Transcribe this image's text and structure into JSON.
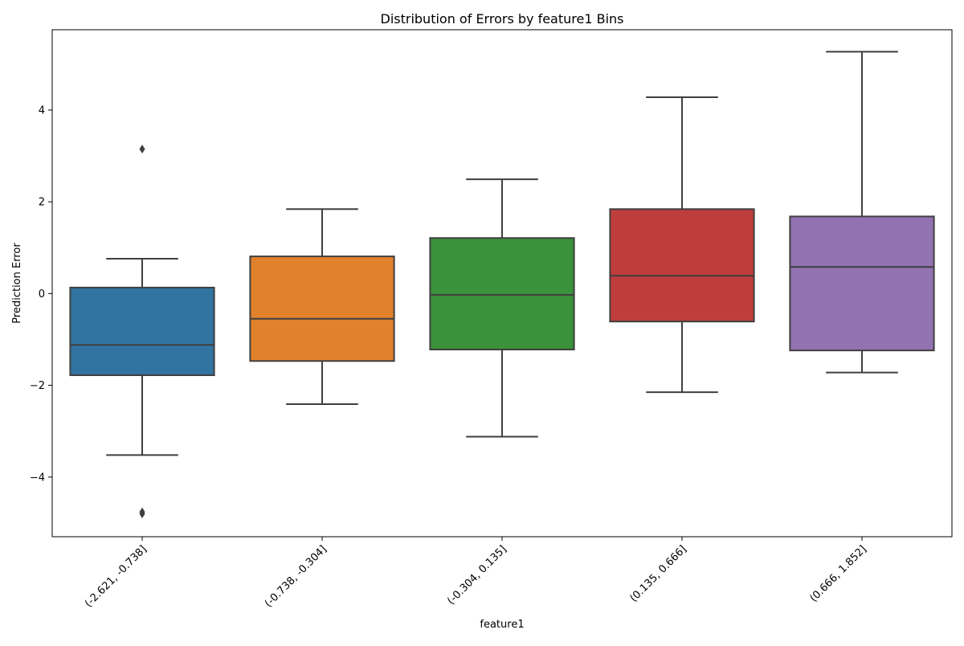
{
  "chart_data": {
    "type": "box",
    "title": "Distribution of Errors by feature1 Bins",
    "xlabel": "feature1",
    "ylabel": "Prediction Error",
    "ylim": [
      -5.3,
      5.75
    ],
    "yticks": [
      -4,
      -2,
      0,
      2,
      4
    ],
    "ytick_labels": [
      "−4",
      "−2",
      "0",
      "2",
      "4"
    ],
    "grid": false,
    "categories": [
      "(-2.621, -0.738]",
      "(-0.738, -0.304]",
      "(-0.304, 0.135]",
      "(0.135, 0.666]",
      "(0.666, 1.852]"
    ],
    "boxes": [
      {
        "category": "(-2.621, -0.738]",
        "color": "#3274a1",
        "whisker_low": -3.52,
        "q1": -1.78,
        "median": -1.12,
        "q3": 0.13,
        "whisker_high": 0.76,
        "outliers": [
          3.15,
          -4.76,
          -4.8
        ]
      },
      {
        "category": "(-0.738, -0.304]",
        "color": "#e1812c",
        "whisker_low": -2.41,
        "q1": -1.47,
        "median": -0.55,
        "q3": 0.81,
        "whisker_high": 1.84,
        "outliers": []
      },
      {
        "category": "(-0.304, 0.135]",
        "color": "#3a923a",
        "whisker_low": -3.12,
        "q1": -1.22,
        "median": -0.03,
        "q3": 1.21,
        "whisker_high": 2.49,
        "outliers": []
      },
      {
        "category": "(0.135, 0.666]",
        "color": "#c03d3e",
        "whisker_low": -2.15,
        "q1": -0.61,
        "median": 0.39,
        "q3": 1.84,
        "whisker_high": 4.28,
        "outliers": []
      },
      {
        "category": "(0.666, 1.852]",
        "color": "#9372b2",
        "whisker_low": -1.72,
        "q1": -1.24,
        "median": 0.58,
        "q3": 1.68,
        "whisker_high": 5.27,
        "outliers": []
      }
    ]
  }
}
